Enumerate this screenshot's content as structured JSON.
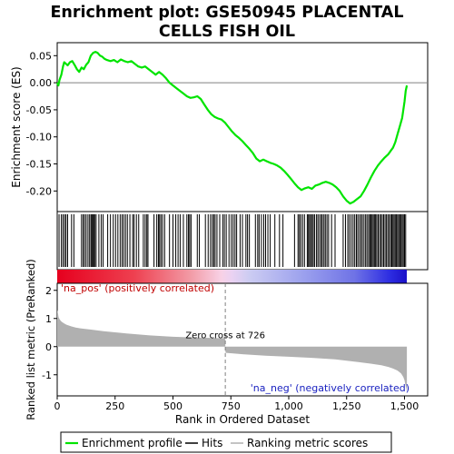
{
  "colors": {
    "enrichment_line": "#00e400",
    "hits": "#000000",
    "ranking_fill": "#b0b0b0",
    "label_pos": "#c00000",
    "label_neg": "#1a22c0",
    "zero_line": "#808080",
    "frame": "#000000"
  },
  "chart_data": {
    "title": "Enrichment plot: GSE50945 PLACENTAL CELLS FISH OIL",
    "x_max": 1510,
    "xlabel": "Rank in Ordered Dataset",
    "xlim": [
      0,
      1600
    ],
    "x_ticks": [
      0,
      250,
      500,
      750,
      1000,
      1250,
      1500
    ],
    "x_tick_labels": [
      "0",
      "250",
      "500",
      "750",
      "1,000",
      "1,250",
      "1,500"
    ],
    "es_panel": {
      "type": "line",
      "ylabel": "Enrichment score (ES)",
      "ylim": [
        -0.238,
        0.074
      ],
      "y_ticks": [
        0.05,
        0.0,
        -0.05,
        -0.1,
        -0.15,
        -0.2
      ],
      "y_tick_labels": [
        "0.05",
        "0.00",
        "-0.05",
        "-0.10",
        "-0.15",
        "-0.20"
      ],
      "x": [
        0,
        5,
        10,
        18,
        25,
        30,
        38,
        45,
        55,
        65,
        75,
        85,
        95,
        105,
        115,
        125,
        135,
        145,
        155,
        165,
        175,
        185,
        195,
        205,
        215,
        230,
        245,
        260,
        275,
        290,
        305,
        320,
        335,
        350,
        365,
        380,
        395,
        410,
        425,
        440,
        455,
        470,
        485,
        500,
        515,
        530,
        545,
        560,
        575,
        590,
        605,
        620,
        635,
        650,
        665,
        680,
        695,
        710,
        725,
        740,
        755,
        770,
        785,
        800,
        815,
        830,
        845,
        860,
        875,
        890,
        905,
        920,
        935,
        950,
        965,
        980,
        995,
        1010,
        1025,
        1040,
        1055,
        1070,
        1085,
        1100,
        1115,
        1130,
        1145,
        1160,
        1175,
        1190,
        1205,
        1220,
        1235,
        1250,
        1265,
        1280,
        1295,
        1310,
        1325,
        1340,
        1355,
        1370,
        1385,
        1400,
        1415,
        1430,
        1440,
        1450,
        1460,
        1470,
        1480,
        1490,
        1500,
        1505,
        1510
      ],
      "y": [
        0.0,
        -0.005,
        0.005,
        0.015,
        0.03,
        0.038,
        0.035,
        0.032,
        0.038,
        0.04,
        0.033,
        0.025,
        0.02,
        0.028,
        0.025,
        0.033,
        0.038,
        0.05,
        0.055,
        0.057,
        0.055,
        0.05,
        0.048,
        0.044,
        0.042,
        0.04,
        0.042,
        0.038,
        0.043,
        0.04,
        0.038,
        0.04,
        0.035,
        0.03,
        0.028,
        0.03,
        0.025,
        0.02,
        0.015,
        0.02,
        0.015,
        0.008,
        0.0,
        -0.005,
        -0.01,
        -0.015,
        -0.02,
        -0.025,
        -0.028,
        -0.027,
        -0.025,
        -0.03,
        -0.04,
        -0.05,
        -0.058,
        -0.063,
        -0.066,
        -0.068,
        -0.074,
        -0.082,
        -0.09,
        -0.097,
        -0.102,
        -0.108,
        -0.115,
        -0.122,
        -0.13,
        -0.14,
        -0.145,
        -0.142,
        -0.145,
        -0.148,
        -0.15,
        -0.153,
        -0.157,
        -0.163,
        -0.17,
        -0.178,
        -0.186,
        -0.193,
        -0.198,
        -0.195,
        -0.193,
        -0.196,
        -0.19,
        -0.188,
        -0.185,
        -0.183,
        -0.185,
        -0.188,
        -0.193,
        -0.2,
        -0.21,
        -0.218,
        -0.223,
        -0.22,
        -0.215,
        -0.21,
        -0.2,
        -0.188,
        -0.175,
        -0.163,
        -0.153,
        -0.145,
        -0.138,
        -0.132,
        -0.126,
        -0.12,
        -0.11,
        -0.095,
        -0.08,
        -0.065,
        -0.035,
        -0.015,
        -0.005
      ]
    },
    "hits_panel": {
      "positions": [
        8,
        18,
        25,
        32,
        38,
        45,
        62,
        72,
        105,
        112,
        118,
        125,
        133,
        140,
        146,
        150,
        154,
        158,
        162,
        168,
        180,
        190,
        198,
        218,
        230,
        242,
        252,
        262,
        272,
        280,
        287,
        295,
        303,
        314,
        326,
        332,
        342,
        352,
        372,
        380,
        387,
        392,
        418,
        430,
        437,
        442,
        448,
        455,
        464,
        485,
        500,
        512,
        522,
        531,
        545,
        560,
        567,
        572,
        578,
        605,
        614,
        640,
        652,
        662,
        670,
        676,
        682,
        690,
        702,
        715,
        722,
        730,
        742,
        752,
        760,
        768,
        775,
        790,
        800,
        815,
        822,
        830,
        856,
        866,
        872,
        882,
        892,
        900,
        910,
        920,
        940,
        960,
        975,
        1025,
        1040,
        1046,
        1052,
        1060,
        1068,
        1080,
        1085,
        1090,
        1095,
        1101,
        1106,
        1112,
        1120,
        1126,
        1133,
        1140,
        1145,
        1152,
        1158,
        1165,
        1172,
        1185,
        1200,
        1235,
        1245,
        1255,
        1262,
        1270,
        1278,
        1285,
        1292,
        1298,
        1305,
        1312,
        1318,
        1325,
        1332,
        1338,
        1345,
        1350,
        1355,
        1360,
        1365,
        1370,
        1375,
        1380,
        1386,
        1392,
        1398,
        1404,
        1410,
        1416,
        1422,
        1428,
        1434,
        1440,
        1445,
        1450,
        1455,
        1460,
        1465,
        1470,
        1475,
        1480,
        1485,
        1490,
        1495,
        1500,
        1505
      ]
    },
    "ranking_panel": {
      "type": "area",
      "ylabel": "Ranked list metric (PreRanked)",
      "ylim": [
        -1.75,
        2.25
      ],
      "y_ticks": [
        2,
        1,
        0,
        -1
      ],
      "y_tick_labels": [
        "2",
        "1",
        "0",
        "-1"
      ],
      "x": [
        0,
        3,
        6,
        10,
        15,
        20,
        30,
        40,
        60,
        80,
        100,
        150,
        200,
        300,
        400,
        500,
        600,
        700,
        725,
        727,
        730,
        800,
        900,
        1000,
        1100,
        1200,
        1250,
        1300,
        1350,
        1400,
        1430,
        1450,
        1470,
        1485,
        1495,
        1500,
        1505,
        1510
      ],
      "y": [
        1.3,
        1.2,
        1.05,
        0.98,
        0.92,
        0.88,
        0.82,
        0.78,
        0.72,
        0.68,
        0.65,
        0.6,
        0.55,
        0.47,
        0.4,
        0.35,
        0.32,
        0.3,
        0.3,
        -0.22,
        -0.22,
        -0.27,
        -0.32,
        -0.36,
        -0.4,
        -0.45,
        -0.5,
        -0.55,
        -0.6,
        -0.66,
        -0.72,
        -0.78,
        -0.85,
        -0.95,
        -1.08,
        -1.2,
        -1.4,
        -1.6
      ],
      "zero_cross_rank": 726,
      "zero_cross_label": "Zero cross at 726",
      "label_pos": "'na_pos' (positively correlated)",
      "label_neg": "'na_neg' (negatively correlated)"
    },
    "legend": {
      "placement": "bottom",
      "entries": [
        "Enrichment profile",
        "Hits",
        "Ranking metric scores"
      ]
    }
  }
}
